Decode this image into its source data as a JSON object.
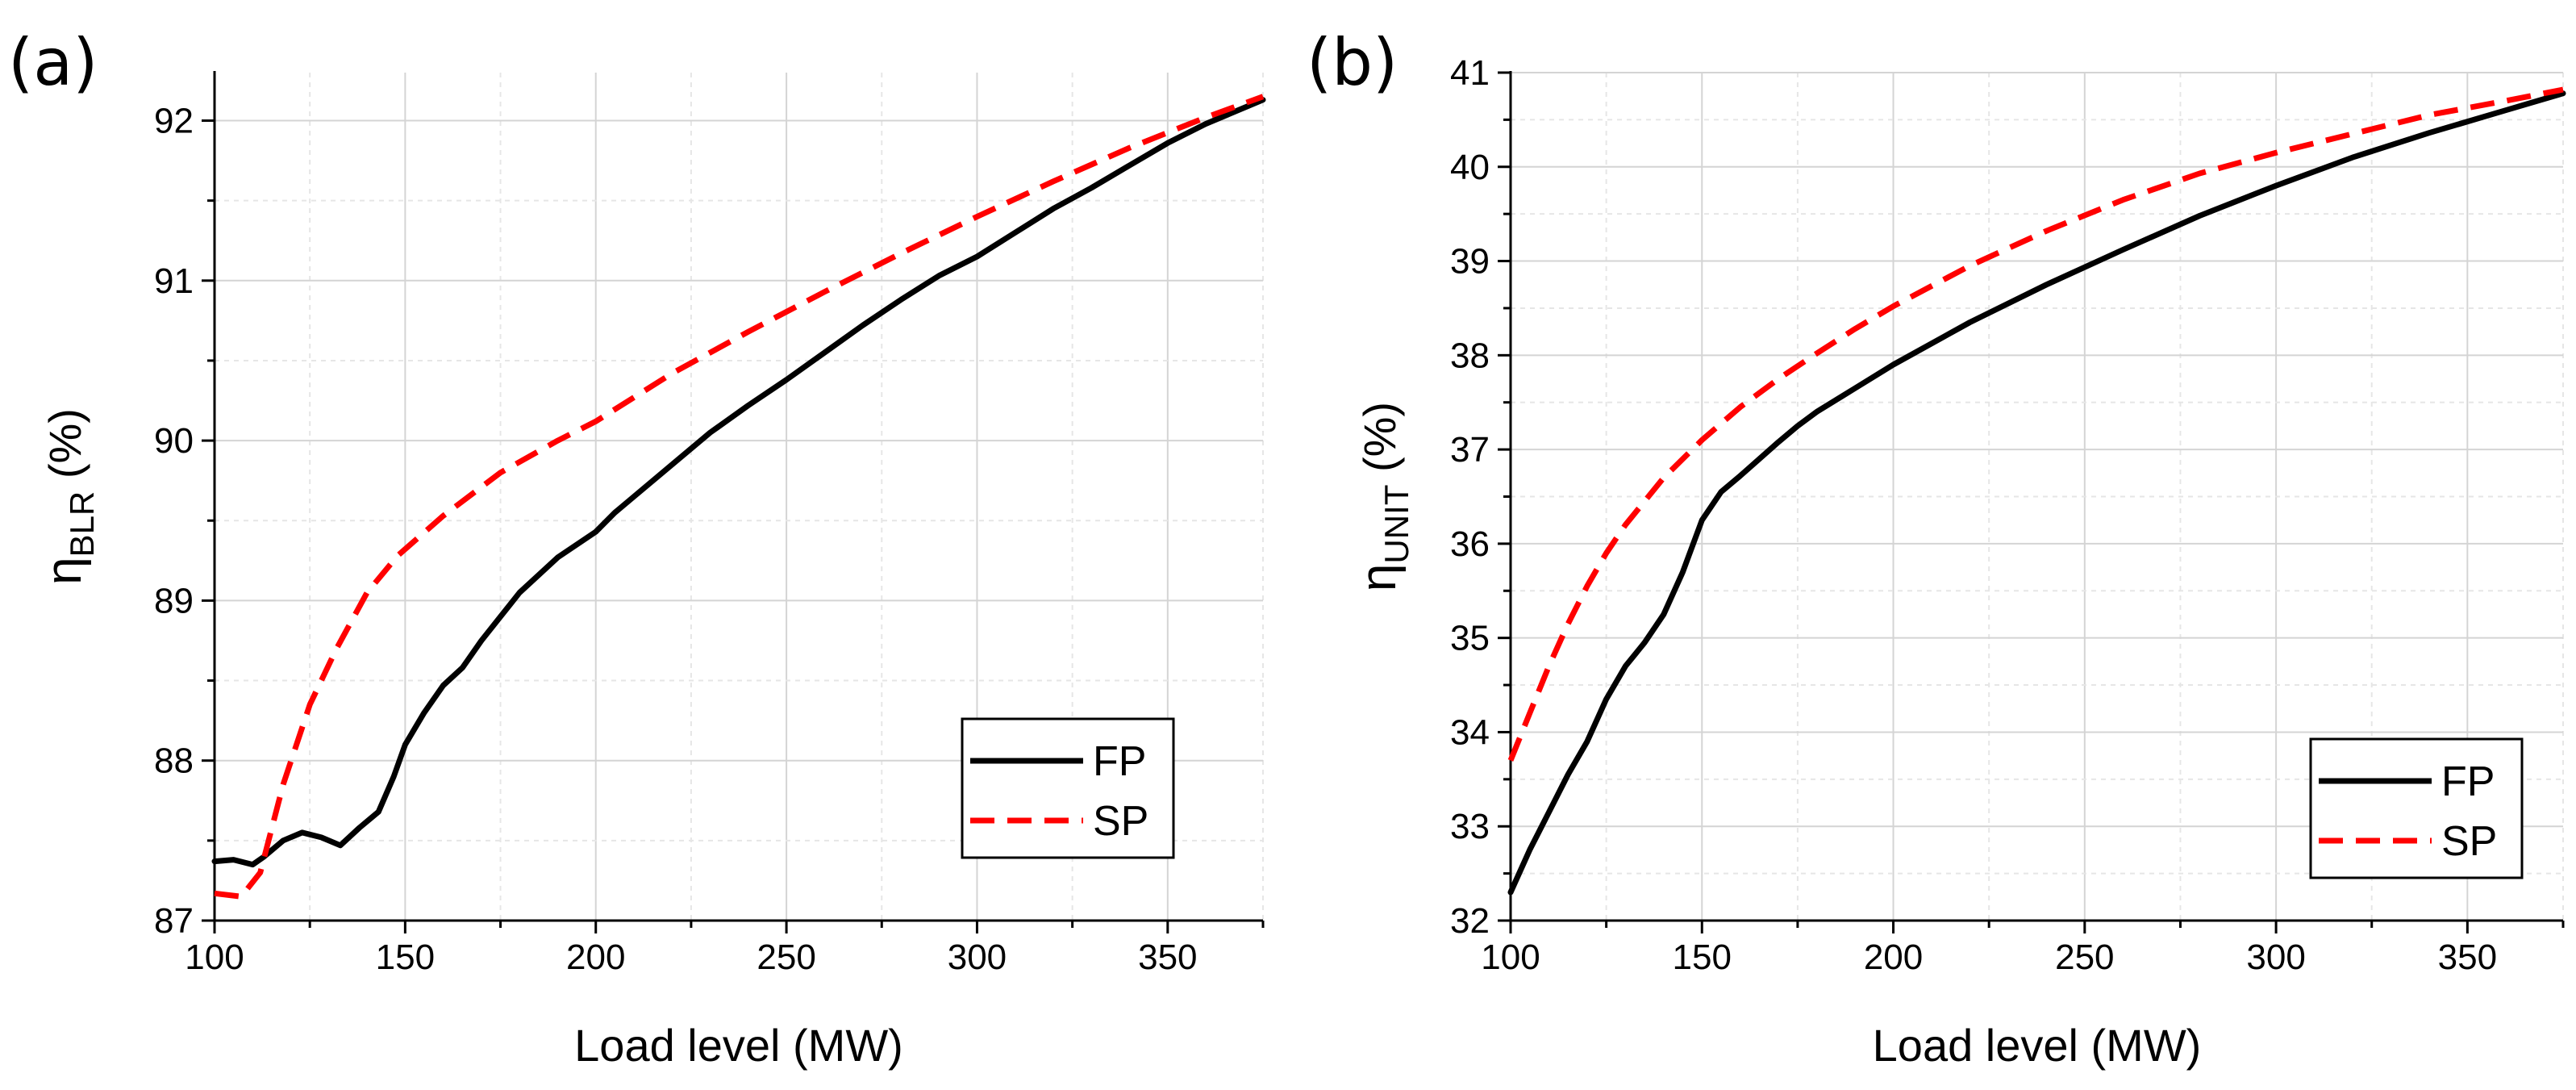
{
  "chart_data": [
    {
      "panel_label": "(a)",
      "type": "line",
      "xlabel": "Load level (MW)",
      "ylabel": {
        "symbol": "η",
        "subscript": "BLR",
        "suffix": " (%)"
      },
      "xlim": [
        100,
        375
      ],
      "ylim": [
        87,
        92.3
      ],
      "xticks": [
        100,
        150,
        200,
        250,
        300,
        350
      ],
      "yticks": [
        87,
        88,
        89,
        90,
        91,
        92
      ],
      "xtick_labels": [
        "100",
        "150",
        "200",
        "250",
        "300",
        "350"
      ],
      "ytick_labels": [
        "87",
        "88",
        "89",
        "90",
        "91",
        "92"
      ],
      "grid": true,
      "legend_position": "bottom-right",
      "series": [
        {
          "name": "FP",
          "color": "#000000",
          "dash": "solid",
          "x": [
            100,
            105,
            110,
            113,
            118,
            123,
            128,
            133,
            138,
            143,
            147,
            150,
            155,
            160,
            165,
            170,
            180,
            190,
            200,
            205,
            210,
            220,
            230,
            240,
            250,
            260,
            270,
            280,
            290,
            300,
            310,
            320,
            330,
            340,
            350,
            360,
            375
          ],
          "y": [
            87.37,
            87.38,
            87.35,
            87.4,
            87.5,
            87.55,
            87.52,
            87.47,
            87.58,
            87.68,
            87.9,
            88.1,
            88.3,
            88.47,
            88.58,
            88.75,
            89.05,
            89.27,
            89.43,
            89.55,
            89.65,
            89.85,
            90.05,
            90.22,
            90.38,
            90.55,
            90.72,
            90.88,
            91.03,
            91.15,
            91.3,
            91.45,
            91.58,
            91.72,
            91.86,
            91.98,
            92.13
          ]
        },
        {
          "name": "SP",
          "color": "#ff0000",
          "dash": "dashed",
          "x": [
            100,
            107,
            112,
            118,
            125,
            132,
            140,
            148,
            160,
            175,
            190,
            200,
            220,
            240,
            260,
            280,
            300,
            320,
            340,
            360,
            375
          ],
          "y": [
            87.17,
            87.15,
            87.3,
            87.85,
            88.35,
            88.7,
            89.05,
            89.28,
            89.53,
            89.8,
            90.0,
            90.12,
            90.42,
            90.68,
            90.93,
            91.17,
            91.4,
            91.62,
            91.83,
            92.02,
            92.15
          ]
        }
      ]
    },
    {
      "panel_label": "(b)",
      "type": "line",
      "xlabel": "Load level (MW)",
      "ylabel": {
        "symbol": "η",
        "subscript": "UNIT",
        "suffix": " (%)"
      },
      "xlim": [
        100,
        375
      ],
      "ylim": [
        32,
        41
      ],
      "xticks": [
        100,
        150,
        200,
        250,
        300,
        350
      ],
      "yticks": [
        32,
        33,
        34,
        35,
        36,
        37,
        38,
        39,
        40,
        41
      ],
      "xtick_labels": [
        "100",
        "150",
        "200",
        "250",
        "300",
        "350"
      ],
      "ytick_labels": [
        "32",
        "33",
        "34",
        "35",
        "36",
        "37",
        "38",
        "39",
        "40",
        "41"
      ],
      "grid": true,
      "legend_position": "bottom-right",
      "series": [
        {
          "name": "FP",
          "color": "#000000",
          "dash": "solid",
          "x": [
            100,
            105,
            110,
            115,
            120,
            125,
            130,
            135,
            140,
            145,
            150,
            155,
            160,
            165,
            170,
            175,
            180,
            190,
            200,
            220,
            240,
            260,
            280,
            300,
            320,
            340,
            360,
            375
          ],
          "y": [
            32.3,
            32.75,
            33.15,
            33.55,
            33.9,
            34.35,
            34.7,
            34.95,
            35.25,
            35.7,
            36.25,
            36.55,
            36.72,
            36.9,
            37.08,
            37.25,
            37.4,
            37.65,
            37.9,
            38.35,
            38.75,
            39.12,
            39.48,
            39.8,
            40.1,
            40.36,
            40.6,
            40.78
          ]
        },
        {
          "name": "SP",
          "color": "#ff0000",
          "dash": "dashed",
          "x": [
            100,
            105,
            110,
            115,
            120,
            125,
            130,
            140,
            150,
            160,
            170,
            180,
            190,
            200,
            220,
            240,
            260,
            280,
            300,
            320,
            340,
            360,
            375
          ],
          "y": [
            33.7,
            34.2,
            34.7,
            35.15,
            35.55,
            35.9,
            36.2,
            36.7,
            37.1,
            37.45,
            37.75,
            38.02,
            38.28,
            38.52,
            38.95,
            39.32,
            39.65,
            39.93,
            40.15,
            40.35,
            40.55,
            40.7,
            40.82
          ]
        }
      ]
    }
  ]
}
